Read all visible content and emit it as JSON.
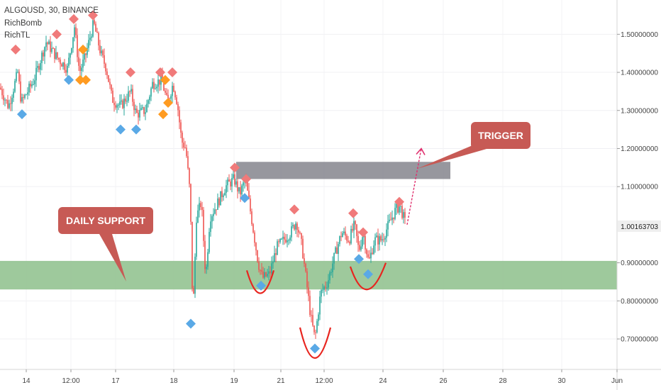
{
  "header": {
    "symbol_line": "ALGOUSD, 30, BINANCE",
    "indicator_1": "RichBomb",
    "indicator_2": "RichTL"
  },
  "annotations": {
    "support_label": "DAILY SUPPORT",
    "trigger_label": "TRIGGER"
  },
  "colors": {
    "bull_candle": "#26a69a",
    "bear_candle": "#ef5350",
    "support_zone": "#8dc08b",
    "resistance_zone": "#8c8c94",
    "callout": "#c75a55",
    "marker_red": "#f07a7a",
    "marker_blue": "#5aa9e6",
    "marker_orange": "#ff9b21",
    "curve": "#e8251f",
    "arrow": "#e0306e",
    "price_tag_bg": "#efefef"
  },
  "chart_data": {
    "type": "candlestick",
    "symbol": "ALGOUSD",
    "interval": "30",
    "exchange": "BINANCE",
    "x_ticks": [
      "14",
      "12:00",
      "17",
      "18",
      "19",
      "21",
      "12:00",
      "24",
      "26",
      "28",
      "30",
      "Jun"
    ],
    "y_ticks": [
      "1.50000000",
      "1.40000000",
      "1.30000000",
      "1.20000000",
      "1.10000000",
      "0.90000000",
      "0.80000000",
      "0.70000000"
    ],
    "ylim": [
      0.62,
      1.59
    ],
    "last_price": "1.00163703",
    "price_path": [
      [
        0,
        1.36
      ],
      [
        12,
        1.31
      ],
      [
        25,
        1.4
      ],
      [
        30,
        1.32
      ],
      [
        48,
        1.38
      ],
      [
        65,
        1.48
      ],
      [
        80,
        1.44
      ],
      [
        95,
        1.41
      ],
      [
        105,
        1.52
      ],
      [
        112,
        1.4
      ],
      [
        120,
        1.44
      ],
      [
        132,
        1.53
      ],
      [
        142,
        1.45
      ],
      [
        150,
        1.41
      ],
      [
        158,
        1.33
      ],
      [
        170,
        1.31
      ],
      [
        184,
        1.35
      ],
      [
        192,
        1.29
      ],
      [
        205,
        1.3
      ],
      [
        215,
        1.37
      ],
      [
        228,
        1.38
      ],
      [
        236,
        1.32
      ],
      [
        244,
        1.37
      ],
      [
        250,
        1.32
      ],
      [
        256,
        1.22
      ],
      [
        262,
        1.2
      ],
      [
        268,
        1.08
      ],
      [
        272,
        0.76
      ],
      [
        277,
        1.02
      ],
      [
        284,
        1.06
      ],
      [
        290,
        0.86
      ],
      [
        296,
        1.02
      ],
      [
        305,
        1.05
      ],
      [
        318,
        1.1
      ],
      [
        330,
        1.12
      ],
      [
        338,
        1.08
      ],
      [
        346,
        1.12
      ],
      [
        356,
        1.0
      ],
      [
        364,
        0.9
      ],
      [
        370,
        0.86
      ],
      [
        380,
        0.87
      ],
      [
        390,
        0.94
      ],
      [
        400,
        0.96
      ],
      [
        410,
        0.98
      ],
      [
        418,
        1.01
      ],
      [
        426,
        0.94
      ],
      [
        432,
        0.85
      ],
      [
        438,
        0.76
      ],
      [
        444,
        0.7
      ],
      [
        452,
        0.82
      ],
      [
        462,
        0.85
      ],
      [
        472,
        0.92
      ],
      [
        482,
        0.98
      ],
      [
        492,
        0.96
      ],
      [
        500,
        1.0
      ],
      [
        506,
        0.93
      ],
      [
        512,
        0.98
      ],
      [
        520,
        0.9
      ],
      [
        528,
        0.96
      ],
      [
        538,
        0.96
      ],
      [
        548,
        1.0
      ],
      [
        558,
        1.04
      ],
      [
        564,
        1.05
      ],
      [
        572,
        1.0
      ]
    ],
    "support_zone": [
      0.83,
      0.905
    ],
    "resistance_zone": [
      1.12,
      1.165
    ],
    "markers_red": [
      [
        22,
        1.46
      ],
      [
        80,
        1.5
      ],
      [
        104,
        1.54
      ],
      [
        131,
        1.55
      ],
      [
        184,
        1.4
      ],
      [
        226,
        1.4
      ],
      [
        243,
        1.4
      ],
      [
        331,
        1.15
      ],
      [
        347,
        1.12
      ],
      [
        415,
        1.04
      ],
      [
        498,
        1.03
      ],
      [
        512,
        0.98
      ],
      [
        563,
        1.06
      ]
    ],
    "markers_orange": [
      [
        117,
        1.46
      ],
      [
        113,
        1.38
      ],
      [
        121,
        1.38
      ],
      [
        233,
        1.38
      ],
      [
        237,
        1.32
      ],
      [
        230,
        1.29
      ]
    ],
    "markers_blue": [
      [
        31,
        1.29
      ],
      [
        97,
        1.38
      ],
      [
        170,
        1.25
      ],
      [
        192,
        1.25
      ],
      [
        269,
        0.74
      ],
      [
        345,
        1.07
      ],
      [
        368,
        0.84
      ],
      [
        444,
        0.675
      ],
      [
        506,
        0.91
      ],
      [
        519,
        0.87
      ]
    ],
    "curves": [
      {
        "from": [
          348,
          0.88
        ],
        "via": [
          367,
          0.82
        ],
        "to": [
          386,
          0.88
        ]
      },
      {
        "from": [
          423,
          0.73
        ],
        "via": [
          444,
          0.65
        ],
        "to": [
          466,
          0.73
        ]
      },
      {
        "from": [
          494,
          0.89
        ],
        "via": [
          518,
          0.83
        ],
        "to": [
          544,
          0.9
        ]
      }
    ],
    "projection_arrow": {
      "from": [
        574,
        1.0
      ],
      "to": [
        594,
        1.2
      ]
    }
  }
}
